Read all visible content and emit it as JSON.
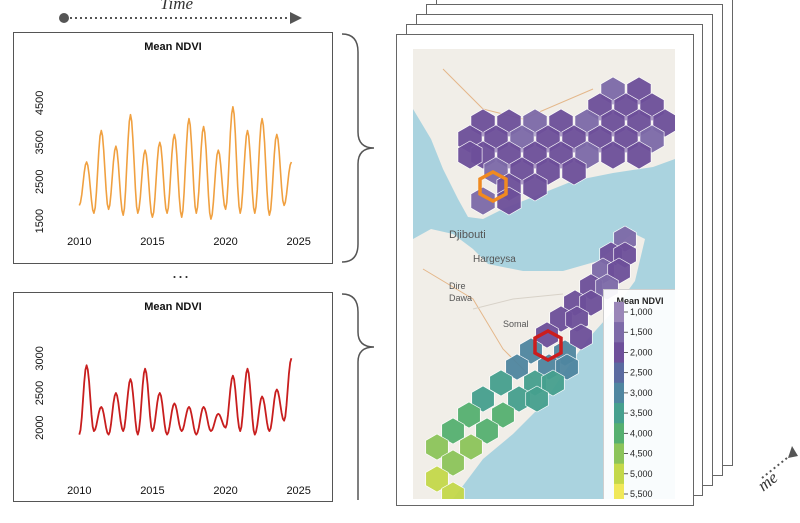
{
  "header": {
    "time_label": "Time"
  },
  "separator": "...",
  "side_label": "me",
  "panels": [
    {
      "title": "Mean NDVI",
      "color": "#f0a040"
    },
    {
      "title": "Mean NDVI",
      "color": "#c81e1e"
    }
  ],
  "chart_data": [
    {
      "type": "line",
      "title": "Mean NDVI",
      "xlim": [
        2009.5,
        2025.5
      ],
      "ylim": [
        1300,
        4700
      ],
      "x_ticks": [
        "2010",
        "2015",
        "2020",
        "2025"
      ],
      "y_ticks": [
        "1500",
        "2500",
        "3500",
        "4500"
      ],
      "series": [
        {
          "color": "#f0a040",
          "x": [
            2010.0,
            2010.5,
            2011.0,
            2011.5,
            2012.0,
            2012.5,
            2013.0,
            2013.5,
            2014.0,
            2014.5,
            2015.0,
            2015.5,
            2016.0,
            2016.5,
            2017.0,
            2017.5,
            2018.0,
            2018.5,
            2019.0,
            2019.5,
            2020.0,
            2020.5,
            2021.0,
            2021.5,
            2022.0,
            2022.5,
            2023.0,
            2023.5,
            2024.0,
            2024.5
          ],
          "y": [
            1900,
            3000,
            1700,
            3800,
            1800,
            3400,
            1650,
            4200,
            1700,
            3300,
            1600,
            3500,
            1700,
            3700,
            1600,
            4100,
            1700,
            3900,
            1550,
            3300,
            1800,
            4400,
            1700,
            3800,
            1700,
            4100,
            1650,
            3700,
            1900,
            3000
          ]
        }
      ]
    },
    {
      "type": "line",
      "title": "Mean NDVI",
      "xlim": [
        2009.5,
        2025.5
      ],
      "ylim": [
        1750,
        3250
      ],
      "x_ticks": [
        "2010",
        "2015",
        "2020",
        "2025"
      ],
      "y_ticks": [
        "2000",
        "2500",
        "3000"
      ],
      "series": [
        {
          "color": "#c81e1e",
          "x": [
            2010.0,
            2010.5,
            2011.0,
            2011.5,
            2012.0,
            2012.5,
            2013.0,
            2013.5,
            2014.0,
            2014.5,
            2015.0,
            2015.5,
            2016.0,
            2016.5,
            2017.0,
            2017.5,
            2018.0,
            2018.5,
            2019.0,
            2019.5,
            2020.0,
            2020.5,
            2021.0,
            2021.5,
            2022.0,
            2022.5,
            2023.0,
            2023.5,
            2024.0,
            2024.5
          ],
          "y": [
            1900,
            2900,
            1950,
            2300,
            1900,
            2500,
            1950,
            2700,
            1900,
            2850,
            1950,
            2500,
            1900,
            2350,
            1950,
            2300,
            1900,
            2300,
            1950,
            2200,
            2000,
            2750,
            1950,
            2850,
            1900,
            2450,
            1950,
            2550,
            2100,
            3000
          ]
        }
      ]
    }
  ],
  "map": {
    "place_labels": [
      "Djibouti",
      "Hargeysa",
      "Dire",
      "Dawa",
      "Somal"
    ],
    "legend": {
      "title": "Mean NDVI",
      "ticks": [
        "1,000",
        "1,500",
        "2,000",
        "2,500",
        "3,000",
        "3,500",
        "4,000",
        "4,500",
        "5,000",
        "5,500"
      ],
      "colors": [
        "#9a86b8",
        "#7d6aa8",
        "#6d4f9a",
        "#5a6aa0",
        "#4f86a0",
        "#46a08e",
        "#56b070",
        "#8cc45a",
        "#c4d84a",
        "#f0e85a"
      ]
    }
  }
}
